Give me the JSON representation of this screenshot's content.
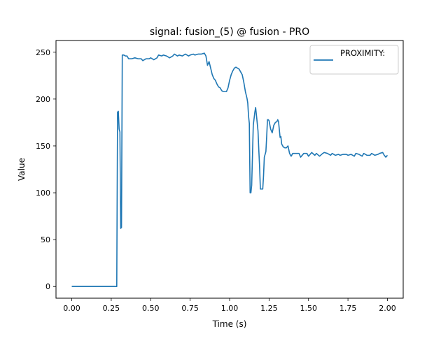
{
  "chart_data": {
    "type": "line",
    "title": "signal: fusion_(5) @ fusion - PRO",
    "xlabel": "Time (s)",
    "ylabel": "Value",
    "xlim": [
      -0.1,
      2.1
    ],
    "ylim": [
      -12.5,
      262.5
    ],
    "xticks": [
      0.0,
      0.25,
      0.5,
      0.75,
      1.0,
      1.25,
      1.5,
      1.75,
      2.0
    ],
    "xtick_labels": [
      "0.00",
      "0.25",
      "0.50",
      "0.75",
      "1.00",
      "1.25",
      "1.50",
      "1.75",
      "2.00"
    ],
    "yticks": [
      0,
      50,
      100,
      150,
      200,
      250
    ],
    "ytick_labels": [
      "0",
      "50",
      "100",
      "150",
      "200",
      "250"
    ],
    "grid": false,
    "legend_position": "top-right",
    "series": [
      {
        "name": "PROXIMITY:",
        "color": "#1f77b4",
        "points": [
          [
            0.0,
            0
          ],
          [
            0.05,
            0
          ],
          [
            0.1,
            0
          ],
          [
            0.15,
            0
          ],
          [
            0.2,
            0
          ],
          [
            0.25,
            0
          ],
          [
            0.285,
            0
          ],
          [
            0.29,
            186
          ],
          [
            0.295,
            187
          ],
          [
            0.3,
            168
          ],
          [
            0.305,
            165
          ],
          [
            0.31,
            62
          ],
          [
            0.315,
            63
          ],
          [
            0.32,
            247
          ],
          [
            0.33,
            247
          ],
          [
            0.34,
            246
          ],
          [
            0.35,
            246
          ],
          [
            0.36,
            243
          ],
          [
            0.38,
            243
          ],
          [
            0.4,
            244
          ],
          [
            0.42,
            243
          ],
          [
            0.44,
            243
          ],
          [
            0.45,
            241
          ],
          [
            0.47,
            243
          ],
          [
            0.49,
            243
          ],
          [
            0.5,
            244
          ],
          [
            0.52,
            242
          ],
          [
            0.54,
            244
          ],
          [
            0.55,
            247
          ],
          [
            0.57,
            246
          ],
          [
            0.58,
            247
          ],
          [
            0.6,
            246
          ],
          [
            0.62,
            244
          ],
          [
            0.64,
            246
          ],
          [
            0.65,
            248
          ],
          [
            0.67,
            246
          ],
          [
            0.68,
            247
          ],
          [
            0.7,
            246
          ],
          [
            0.72,
            248
          ],
          [
            0.74,
            246
          ],
          [
            0.75,
            247
          ],
          [
            0.77,
            248
          ],
          [
            0.78,
            247
          ],
          [
            0.8,
            248
          ],
          [
            0.82,
            248
          ],
          [
            0.84,
            249
          ],
          [
            0.85,
            246
          ],
          [
            0.86,
            236
          ],
          [
            0.87,
            240
          ],
          [
            0.88,
            233
          ],
          [
            0.89,
            226
          ],
          [
            0.9,
            222
          ],
          [
            0.91,
            220
          ],
          [
            0.92,
            216
          ],
          [
            0.93,
            213
          ],
          [
            0.94,
            212
          ],
          [
            0.95,
            209
          ],
          [
            0.96,
            208
          ],
          [
            0.97,
            208
          ],
          [
            0.98,
            208
          ],
          [
            0.99,
            212
          ],
          [
            1.0,
            220
          ],
          [
            1.01,
            226
          ],
          [
            1.02,
            230
          ],
          [
            1.03,
            233
          ],
          [
            1.04,
            234
          ],
          [
            1.05,
            233
          ],
          [
            1.06,
            232
          ],
          [
            1.07,
            229
          ],
          [
            1.08,
            226
          ],
          [
            1.09,
            218
          ],
          [
            1.1,
            208
          ],
          [
            1.11,
            201
          ],
          [
            1.115,
            196
          ],
          [
            1.12,
            182
          ],
          [
            1.125,
            174
          ],
          [
            1.13,
            100
          ],
          [
            1.135,
            100
          ],
          [
            1.14,
            108
          ],
          [
            1.15,
            172
          ],
          [
            1.16,
            186
          ],
          [
            1.165,
            191
          ],
          [
            1.17,
            183
          ],
          [
            1.18,
            166
          ],
          [
            1.185,
            146
          ],
          [
            1.19,
            128
          ],
          [
            1.195,
            104
          ],
          [
            1.2,
            104
          ],
          [
            1.21,
            104
          ],
          [
            1.215,
            118
          ],
          [
            1.22,
            138
          ],
          [
            1.23,
            144
          ],
          [
            1.235,
            160
          ],
          [
            1.24,
            178
          ],
          [
            1.245,
            178
          ],
          [
            1.25,
            177
          ],
          [
            1.26,
            168
          ],
          [
            1.27,
            164
          ],
          [
            1.28,
            172
          ],
          [
            1.29,
            175
          ],
          [
            1.3,
            176
          ],
          [
            1.305,
            178
          ],
          [
            1.31,
            176
          ],
          [
            1.32,
            159
          ],
          [
            1.325,
            160
          ],
          [
            1.33,
            152
          ],
          [
            1.34,
            149
          ],
          [
            1.35,
            148
          ],
          [
            1.36,
            148
          ],
          [
            1.37,
            150
          ],
          [
            1.38,
            142
          ],
          [
            1.39,
            139
          ],
          [
            1.4,
            142
          ],
          [
            1.42,
            142
          ],
          [
            1.44,
            142
          ],
          [
            1.45,
            138
          ],
          [
            1.47,
            142
          ],
          [
            1.49,
            142
          ],
          [
            1.5,
            139
          ],
          [
            1.52,
            143
          ],
          [
            1.54,
            140
          ],
          [
            1.55,
            142
          ],
          [
            1.57,
            139
          ],
          [
            1.59,
            142
          ],
          [
            1.6,
            143
          ],
          [
            1.62,
            142
          ],
          [
            1.64,
            140
          ],
          [
            1.65,
            142
          ],
          [
            1.67,
            140
          ],
          [
            1.69,
            141
          ],
          [
            1.7,
            140
          ],
          [
            1.72,
            141
          ],
          [
            1.74,
            141
          ],
          [
            1.75,
            140
          ],
          [
            1.77,
            141
          ],
          [
            1.79,
            139
          ],
          [
            1.8,
            142
          ],
          [
            1.82,
            141
          ],
          [
            1.84,
            139
          ],
          [
            1.85,
            142
          ],
          [
            1.87,
            140
          ],
          [
            1.89,
            140
          ],
          [
            1.9,
            142
          ],
          [
            1.92,
            140
          ],
          [
            1.94,
            141
          ],
          [
            1.95,
            142
          ],
          [
            1.97,
            143
          ],
          [
            1.98,
            140
          ],
          [
            1.99,
            138
          ],
          [
            2.0,
            140
          ]
        ]
      }
    ]
  }
}
